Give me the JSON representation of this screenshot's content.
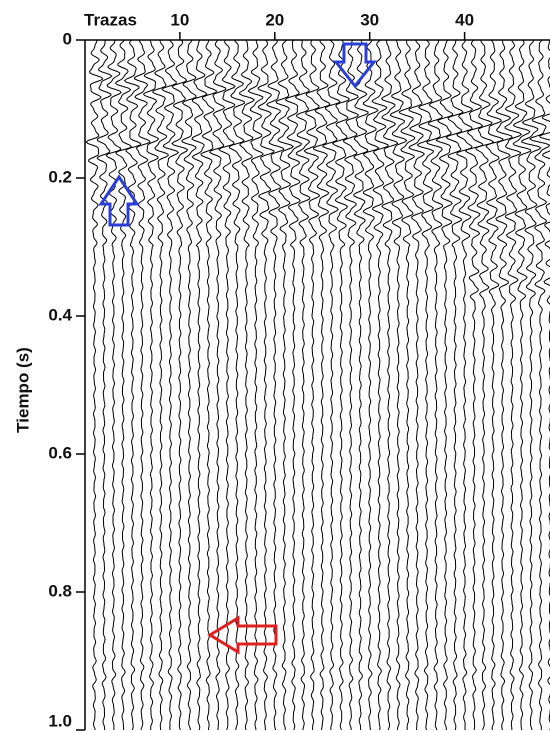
{
  "chart_data": {
    "type": "seismic",
    "xlabel": "Trazas",
    "ylabel": "Tiempo (s)",
    "xlim": [
      0,
      49
    ],
    "xticks": [
      10,
      20,
      30,
      40
    ],
    "ylim": [
      0,
      1.0
    ],
    "yticks": [
      0,
      {
        "value": 0.2,
        "label": "0.2"
      },
      {
        "value": 0.4,
        "label": "0.4"
      },
      {
        "value": 0.6,
        "label": "0.6"
      },
      {
        "value": 0.8,
        "label": "0.8"
      },
      {
        "value": 1.0,
        "label": "1.0"
      }
    ]
  }
}
